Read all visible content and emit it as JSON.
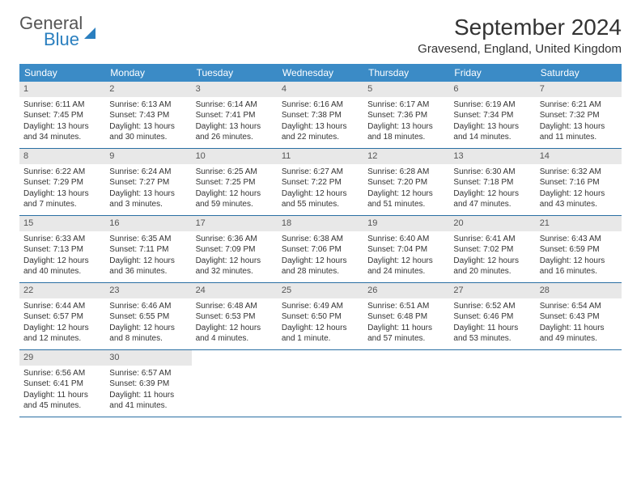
{
  "logo": {
    "line1": "General",
    "line2": "Blue"
  },
  "title": "September 2024",
  "location": "Gravesend, England, United Kingdom",
  "colors": {
    "header_bg": "#3b8bc6",
    "header_text": "#ffffff",
    "num_row_bg": "#e8e8e8",
    "week_border": "#2a6fa3",
    "logo_blue": "#2a7fbf",
    "body_text": "#333333"
  },
  "day_names": [
    "Sunday",
    "Monday",
    "Tuesday",
    "Wednesday",
    "Thursday",
    "Friday",
    "Saturday"
  ],
  "weeks": [
    [
      {
        "num": "1",
        "sunrise": "Sunrise: 6:11 AM",
        "sunset": "Sunset: 7:45 PM",
        "dl1": "Daylight: 13 hours",
        "dl2": "and 34 minutes."
      },
      {
        "num": "2",
        "sunrise": "Sunrise: 6:13 AM",
        "sunset": "Sunset: 7:43 PM",
        "dl1": "Daylight: 13 hours",
        "dl2": "and 30 minutes."
      },
      {
        "num": "3",
        "sunrise": "Sunrise: 6:14 AM",
        "sunset": "Sunset: 7:41 PM",
        "dl1": "Daylight: 13 hours",
        "dl2": "and 26 minutes."
      },
      {
        "num": "4",
        "sunrise": "Sunrise: 6:16 AM",
        "sunset": "Sunset: 7:38 PM",
        "dl1": "Daylight: 13 hours",
        "dl2": "and 22 minutes."
      },
      {
        "num": "5",
        "sunrise": "Sunrise: 6:17 AM",
        "sunset": "Sunset: 7:36 PM",
        "dl1": "Daylight: 13 hours",
        "dl2": "and 18 minutes."
      },
      {
        "num": "6",
        "sunrise": "Sunrise: 6:19 AM",
        "sunset": "Sunset: 7:34 PM",
        "dl1": "Daylight: 13 hours",
        "dl2": "and 14 minutes."
      },
      {
        "num": "7",
        "sunrise": "Sunrise: 6:21 AM",
        "sunset": "Sunset: 7:32 PM",
        "dl1": "Daylight: 13 hours",
        "dl2": "and 11 minutes."
      }
    ],
    [
      {
        "num": "8",
        "sunrise": "Sunrise: 6:22 AM",
        "sunset": "Sunset: 7:29 PM",
        "dl1": "Daylight: 13 hours",
        "dl2": "and 7 minutes."
      },
      {
        "num": "9",
        "sunrise": "Sunrise: 6:24 AM",
        "sunset": "Sunset: 7:27 PM",
        "dl1": "Daylight: 13 hours",
        "dl2": "and 3 minutes."
      },
      {
        "num": "10",
        "sunrise": "Sunrise: 6:25 AM",
        "sunset": "Sunset: 7:25 PM",
        "dl1": "Daylight: 12 hours",
        "dl2": "and 59 minutes."
      },
      {
        "num": "11",
        "sunrise": "Sunrise: 6:27 AM",
        "sunset": "Sunset: 7:22 PM",
        "dl1": "Daylight: 12 hours",
        "dl2": "and 55 minutes."
      },
      {
        "num": "12",
        "sunrise": "Sunrise: 6:28 AM",
        "sunset": "Sunset: 7:20 PM",
        "dl1": "Daylight: 12 hours",
        "dl2": "and 51 minutes."
      },
      {
        "num": "13",
        "sunrise": "Sunrise: 6:30 AM",
        "sunset": "Sunset: 7:18 PM",
        "dl1": "Daylight: 12 hours",
        "dl2": "and 47 minutes."
      },
      {
        "num": "14",
        "sunrise": "Sunrise: 6:32 AM",
        "sunset": "Sunset: 7:16 PM",
        "dl1": "Daylight: 12 hours",
        "dl2": "and 43 minutes."
      }
    ],
    [
      {
        "num": "15",
        "sunrise": "Sunrise: 6:33 AM",
        "sunset": "Sunset: 7:13 PM",
        "dl1": "Daylight: 12 hours",
        "dl2": "and 40 minutes."
      },
      {
        "num": "16",
        "sunrise": "Sunrise: 6:35 AM",
        "sunset": "Sunset: 7:11 PM",
        "dl1": "Daylight: 12 hours",
        "dl2": "and 36 minutes."
      },
      {
        "num": "17",
        "sunrise": "Sunrise: 6:36 AM",
        "sunset": "Sunset: 7:09 PM",
        "dl1": "Daylight: 12 hours",
        "dl2": "and 32 minutes."
      },
      {
        "num": "18",
        "sunrise": "Sunrise: 6:38 AM",
        "sunset": "Sunset: 7:06 PM",
        "dl1": "Daylight: 12 hours",
        "dl2": "and 28 minutes."
      },
      {
        "num": "19",
        "sunrise": "Sunrise: 6:40 AM",
        "sunset": "Sunset: 7:04 PM",
        "dl1": "Daylight: 12 hours",
        "dl2": "and 24 minutes."
      },
      {
        "num": "20",
        "sunrise": "Sunrise: 6:41 AM",
        "sunset": "Sunset: 7:02 PM",
        "dl1": "Daylight: 12 hours",
        "dl2": "and 20 minutes."
      },
      {
        "num": "21",
        "sunrise": "Sunrise: 6:43 AM",
        "sunset": "Sunset: 6:59 PM",
        "dl1": "Daylight: 12 hours",
        "dl2": "and 16 minutes."
      }
    ],
    [
      {
        "num": "22",
        "sunrise": "Sunrise: 6:44 AM",
        "sunset": "Sunset: 6:57 PM",
        "dl1": "Daylight: 12 hours",
        "dl2": "and 12 minutes."
      },
      {
        "num": "23",
        "sunrise": "Sunrise: 6:46 AM",
        "sunset": "Sunset: 6:55 PM",
        "dl1": "Daylight: 12 hours",
        "dl2": "and 8 minutes."
      },
      {
        "num": "24",
        "sunrise": "Sunrise: 6:48 AM",
        "sunset": "Sunset: 6:53 PM",
        "dl1": "Daylight: 12 hours",
        "dl2": "and 4 minutes."
      },
      {
        "num": "25",
        "sunrise": "Sunrise: 6:49 AM",
        "sunset": "Sunset: 6:50 PM",
        "dl1": "Daylight: 12 hours",
        "dl2": "and 1 minute."
      },
      {
        "num": "26",
        "sunrise": "Sunrise: 6:51 AM",
        "sunset": "Sunset: 6:48 PM",
        "dl1": "Daylight: 11 hours",
        "dl2": "and 57 minutes."
      },
      {
        "num": "27",
        "sunrise": "Sunrise: 6:52 AM",
        "sunset": "Sunset: 6:46 PM",
        "dl1": "Daylight: 11 hours",
        "dl2": "and 53 minutes."
      },
      {
        "num": "28",
        "sunrise": "Sunrise: 6:54 AM",
        "sunset": "Sunset: 6:43 PM",
        "dl1": "Daylight: 11 hours",
        "dl2": "and 49 minutes."
      }
    ],
    [
      {
        "num": "29",
        "sunrise": "Sunrise: 6:56 AM",
        "sunset": "Sunset: 6:41 PM",
        "dl1": "Daylight: 11 hours",
        "dl2": "and 45 minutes."
      },
      {
        "num": "30",
        "sunrise": "Sunrise: 6:57 AM",
        "sunset": "Sunset: 6:39 PM",
        "dl1": "Daylight: 11 hours",
        "dl2": "and 41 minutes."
      },
      {
        "empty": true
      },
      {
        "empty": true
      },
      {
        "empty": true
      },
      {
        "empty": true
      },
      {
        "empty": true
      }
    ]
  ]
}
